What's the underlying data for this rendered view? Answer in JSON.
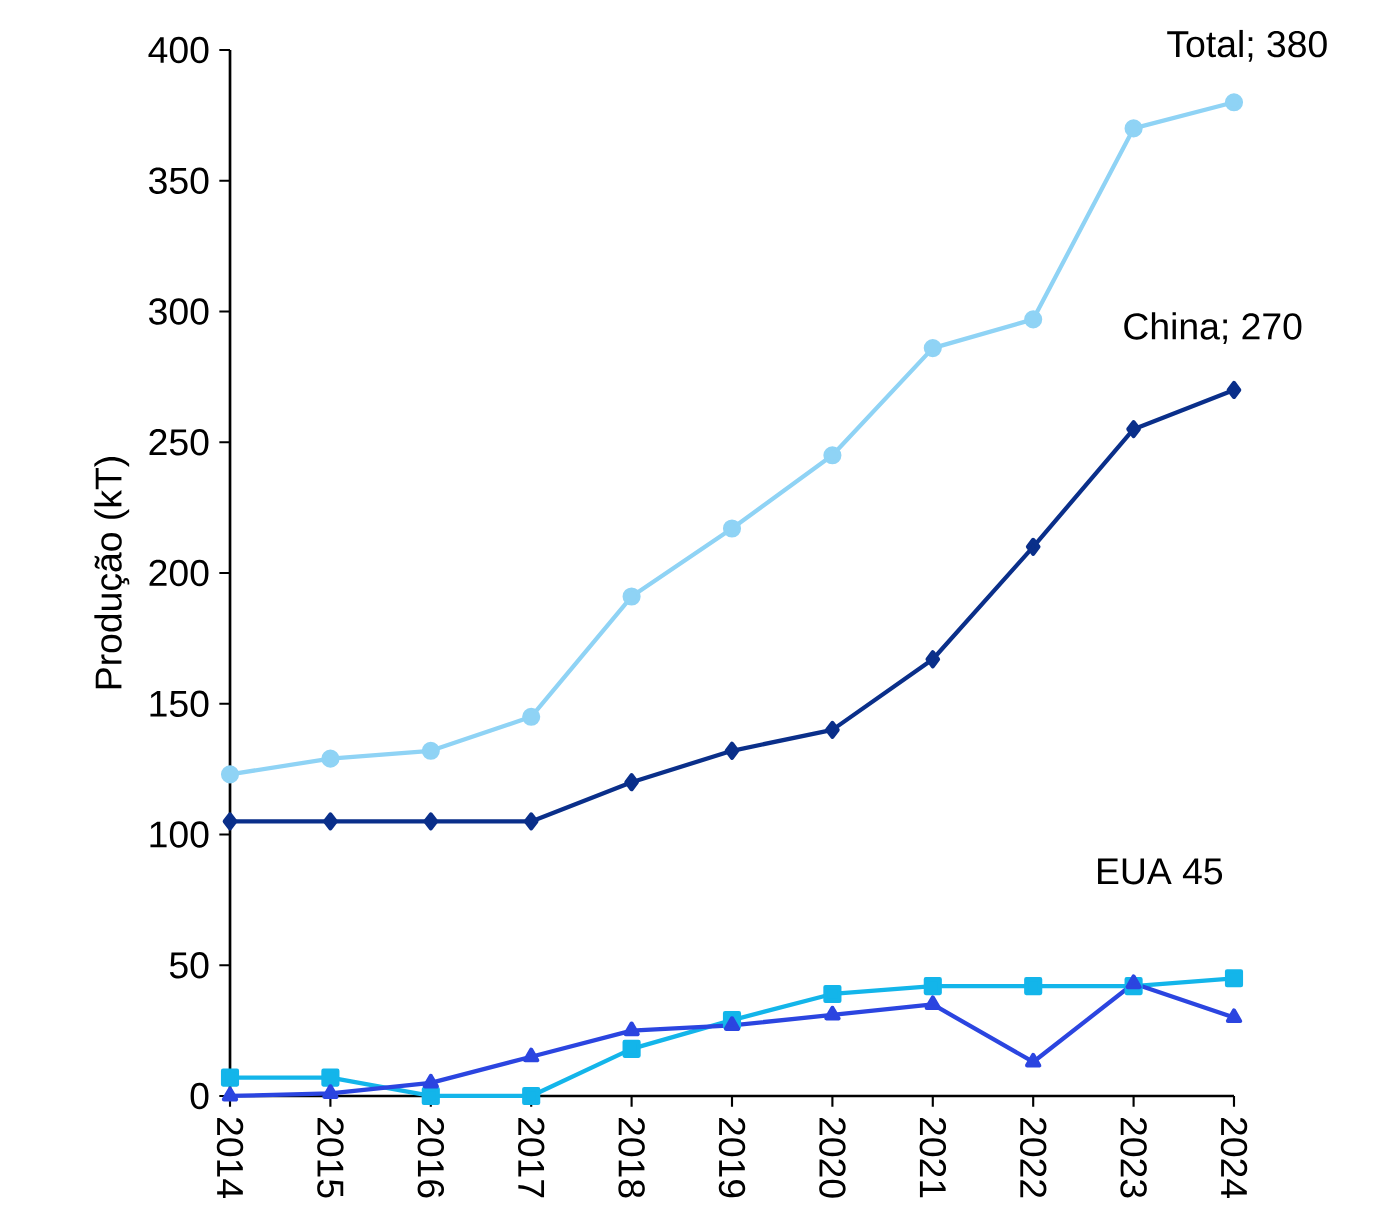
{
  "chart_data": {
    "type": "line",
    "ylabel": "Produção (kT)",
    "categories": [
      "2014",
      "2015",
      "2016",
      "2017",
      "2018",
      "2019",
      "2020",
      "2021",
      "2022",
      "2023",
      "2024"
    ],
    "series": [
      {
        "color": "#8fd3f5",
        "marker": "circle",
        "values": [
          123,
          129,
          132,
          145,
          191,
          217,
          245,
          286,
          297,
          370,
          380
        ]
      },
      {
        "color": "#0a2f8a",
        "marker": "diamond",
        "values": [
          105,
          105,
          105,
          105,
          120,
          132,
          140,
          167,
          210,
          255,
          270
        ]
      },
      {
        "color": "#2b45e0",
        "marker": "triangle",
        "values": [
          0,
          1,
          5,
          15,
          25,
          27,
          31,
          35,
          13,
          43,
          30
        ]
      },
      {
        "color": "#13b5ea",
        "marker": "square",
        "values": [
          7,
          7,
          0,
          0,
          18,
          29,
          39,
          42,
          42,
          42,
          45
        ]
      }
    ],
    "ylim": [
      0,
      400
    ],
    "yticks": [
      0,
      50,
      100,
      150,
      200,
      250,
      300,
      350,
      400
    ],
    "grid": false,
    "line_style": "solid",
    "annotations": [
      {
        "text": "Total; 380",
        "x": "2024",
        "y": 380
      },
      {
        "text": "China; 270",
        "x": "2024",
        "y": 270
      },
      {
        "text": "EUA 45",
        "x": "2024",
        "y": 45
      }
    ]
  }
}
